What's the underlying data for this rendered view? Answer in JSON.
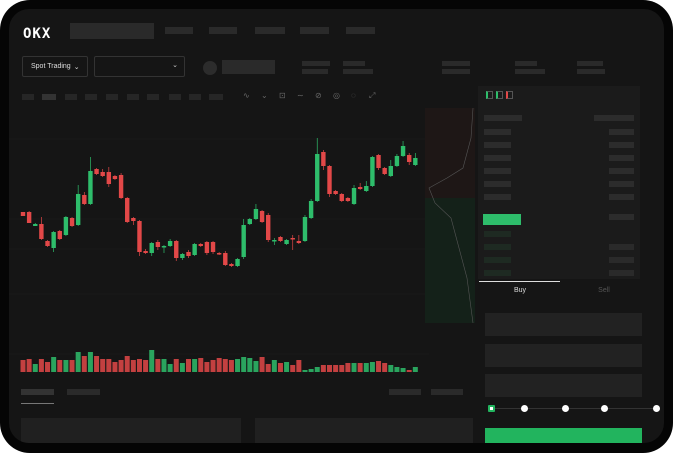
{
  "header": {
    "logo": "OKX"
  },
  "toolbar": {
    "market_select": "Spot Trading",
    "pair_select": "",
    "chevron": "chevron-down-icon"
  },
  "trade": {
    "buy_label": "Buy",
    "sell_label": "Sell",
    "leverage_steps": 5,
    "leverage_selected": 0
  },
  "colors": {
    "up": "#2ebd6b",
    "down": "#e24848",
    "background": "#151515",
    "accent": "#22b45e"
  },
  "chart": {
    "type": "candlestick",
    "candles": [
      [
        97,
        97,
        93,
        93
      ],
      [
        97,
        98,
        86,
        86
      ],
      [
        83,
        86,
        83,
        85
      ],
      [
        85,
        92,
        69,
        70
      ],
      [
        68,
        69,
        62,
        63
      ],
      [
        61,
        78,
        57,
        77
      ],
      [
        78,
        79,
        69,
        70
      ],
      [
        74,
        93,
        73,
        92
      ],
      [
        91,
        92,
        82,
        83
      ],
      [
        84,
        124,
        83,
        115
      ],
      [
        114,
        117,
        104,
        105
      ],
      [
        105,
        152,
        104,
        138
      ],
      [
        140,
        141,
        134,
        135
      ],
      [
        137,
        140,
        132,
        133
      ],
      [
        137,
        142,
        122,
        125
      ],
      [
        133,
        134,
        129,
        130
      ],
      [
        134,
        136,
        110,
        111
      ],
      [
        111,
        112,
        86,
        87
      ],
      [
        91,
        92,
        84,
        88
      ],
      [
        88,
        89,
        53,
        57
      ],
      [
        58,
        60,
        55,
        56
      ],
      [
        56,
        67,
        53,
        66
      ],
      [
        67,
        69,
        59,
        62
      ],
      [
        62,
        64,
        56,
        63
      ],
      [
        63,
        70,
        62,
        68
      ],
      [
        68,
        69,
        48,
        51
      ],
      [
        51,
        56,
        49,
        55
      ],
      [
        57,
        59,
        51,
        53
      ],
      [
        54,
        66,
        53,
        65
      ],
      [
        65,
        66,
        62,
        63
      ],
      [
        67,
        68,
        54,
        56
      ],
      [
        67,
        68,
        55,
        57
      ],
      [
        56,
        57,
        54,
        55
      ],
      [
        56,
        58,
        43,
        44
      ],
      [
        45,
        46,
        42,
        43
      ],
      [
        43,
        51,
        42,
        50
      ],
      [
        52,
        90,
        50,
        84
      ],
      [
        85,
        91,
        84,
        90
      ],
      [
        90,
        105,
        89,
        100
      ],
      [
        98,
        99,
        86,
        87
      ],
      [
        94,
        96,
        67,
        69
      ],
      [
        68,
        71,
        64,
        69
      ],
      [
        72,
        73,
        67,
        68
      ],
      [
        65,
        70,
        64,
        69
      ],
      [
        71,
        74,
        59,
        70
      ],
      [
        68,
        74,
        65,
        66
      ],
      [
        68,
        94,
        67,
        92
      ],
      [
        91,
        110,
        90,
        108
      ],
      [
        108,
        171,
        107,
        155
      ],
      [
        157,
        159,
        139,
        143
      ],
      [
        143,
        144,
        112,
        115
      ],
      [
        118,
        119,
        114,
        115
      ],
      [
        115,
        116,
        107,
        108
      ],
      [
        111,
        112,
        107,
        108
      ],
      [
        105,
        124,
        104,
        121
      ],
      [
        122,
        126,
        119,
        120
      ],
      [
        118,
        128,
        117,
        123
      ],
      [
        123,
        153,
        122,
        152
      ],
      [
        154,
        155,
        139,
        141
      ],
      [
        141,
        142,
        134,
        135
      ],
      [
        133,
        149,
        132,
        143
      ],
      [
        143,
        155,
        142,
        153
      ],
      [
        153,
        168,
        152,
        163
      ],
      [
        154,
        156,
        144,
        147
      ],
      [
        144,
        156,
        143,
        151
      ]
    ],
    "volume": [
      12,
      13,
      8,
      13,
      10,
      15,
      12,
      12,
      12,
      20,
      16,
      20,
      16,
      13,
      13,
      10,
      12,
      16,
      12,
      13,
      12,
      22,
      13,
      13,
      8,
      13,
      9,
      13,
      13,
      14,
      10,
      12,
      14,
      13,
      12,
      13,
      15,
      14,
      11,
      15,
      8,
      12,
      9,
      10,
      7,
      12,
      2,
      3,
      5,
      7,
      7,
      7,
      7,
      9,
      9,
      9,
      9,
      10,
      11,
      9,
      7,
      5,
      4,
      2,
      5
    ]
  }
}
